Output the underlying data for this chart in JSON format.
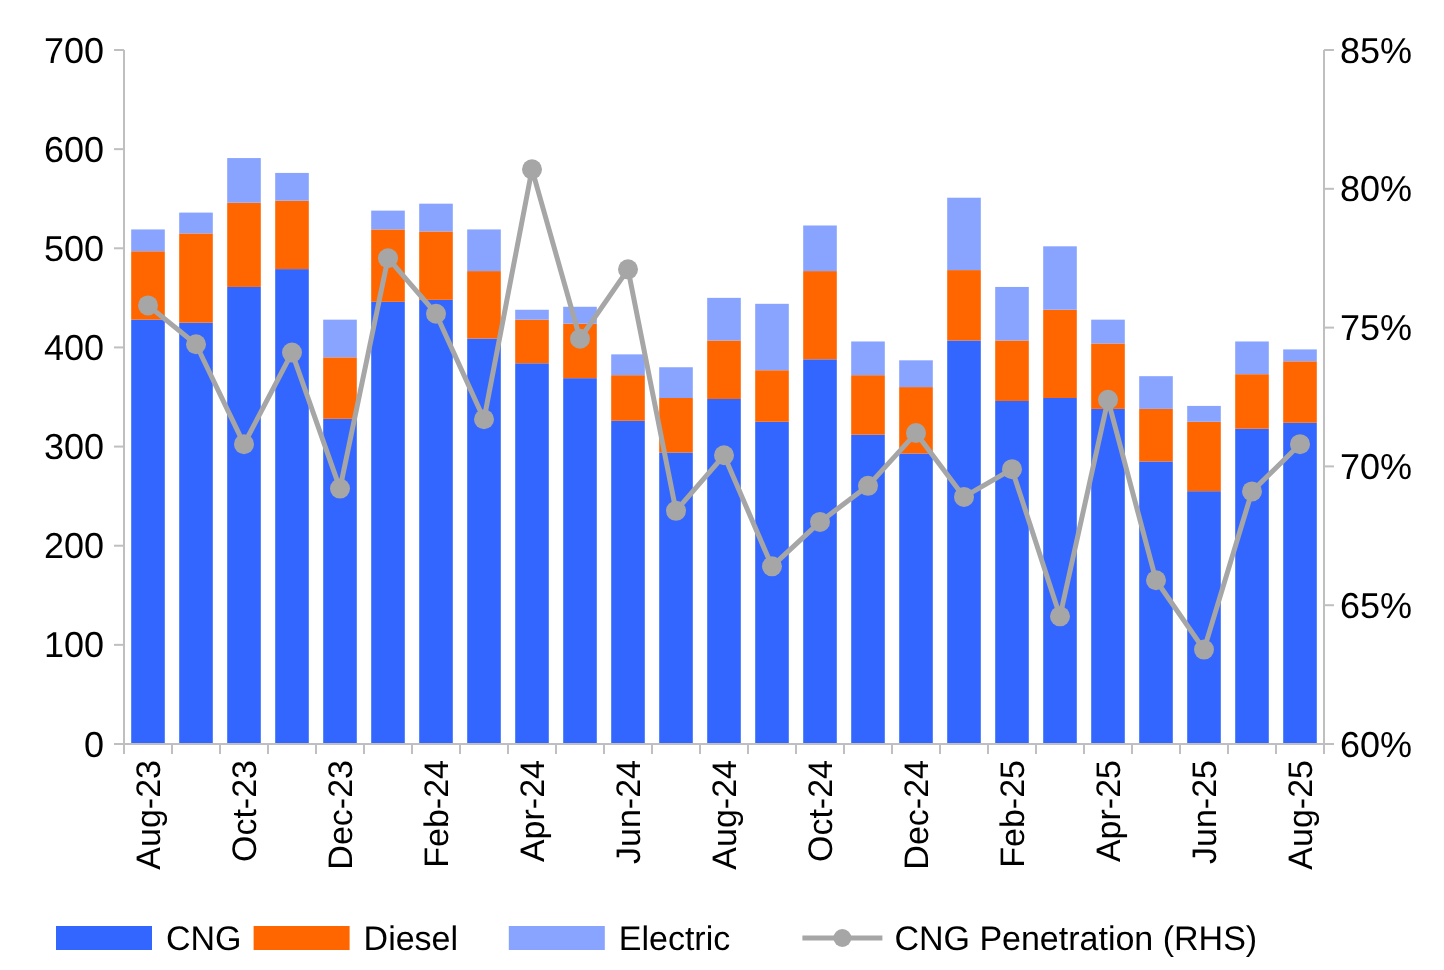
{
  "chart_data": {
    "type": "bar",
    "stacked": true,
    "legend": "bottom",
    "grid": false,
    "categories": [
      "Aug-23",
      null,
      "Oct-23",
      null,
      "Dec-23",
      null,
      "Feb-24",
      null,
      "Apr-24",
      null,
      "Jun-24",
      null,
      "Aug-24",
      null,
      "Oct-24",
      null,
      "Dec-24",
      null,
      "Feb-25",
      null,
      "Apr-25",
      null,
      "Jun-25",
      null,
      "Aug-25"
    ],
    "ylim": [
      0,
      700
    ],
    "yticks": [
      0,
      100,
      200,
      300,
      400,
      500,
      600,
      700
    ],
    "y2lim": [
      60,
      85
    ],
    "y2ticks": [
      {
        "value": 60,
        "label": "60%"
      },
      {
        "value": 65,
        "label": "65%"
      },
      {
        "value": 70,
        "label": "70%"
      },
      {
        "value": 75,
        "label": "75%"
      },
      {
        "value": 80,
        "label": "80%"
      },
      {
        "value": 85,
        "label": "85%"
      }
    ],
    "series": [
      {
        "name": "CNG",
        "color": "#3366ff",
        "values": [
          428,
          425,
          461,
          479,
          328,
          446,
          448,
          409,
          384,
          369,
          326,
          294,
          348,
          325,
          388,
          312,
          293,
          407,
          346,
          349,
          338,
          285,
          255,
          318,
          324
        ]
      },
      {
        "name": "Diesel",
        "color": "#ff6600",
        "values": [
          69,
          90,
          85,
          69,
          62,
          73,
          69,
          68,
          44,
          55,
          46,
          55,
          59,
          52,
          89,
          60,
          67,
          71,
          61,
          89,
          66,
          53,
          70,
          55,
          62
        ]
      },
      {
        "name": "Electric",
        "color": "#88a4ff",
        "values": [
          22,
          21,
          45,
          28,
          38,
          19,
          28,
          42,
          10,
          17,
          21,
          31,
          43,
          67,
          46,
          34,
          27,
          73,
          54,
          64,
          24,
          33,
          16,
          33,
          12
        ]
      },
      {
        "name": "CNG Penetration (RHS)",
        "type": "line",
        "axis": "y2",
        "color": "#a6a6a6",
        "marker": "circle",
        "line_style": "solid",
        "values": [
          75.8,
          74.4,
          70.8,
          74.1,
          69.2,
          77.5,
          75.5,
          71.7,
          80.7,
          74.6,
          77.1,
          68.4,
          70.4,
          66.4,
          68.0,
          69.3,
          71.2,
          68.9,
          69.9,
          64.6,
          72.4,
          65.9,
          63.4,
          69.1,
          70.8
        ]
      }
    ]
  }
}
